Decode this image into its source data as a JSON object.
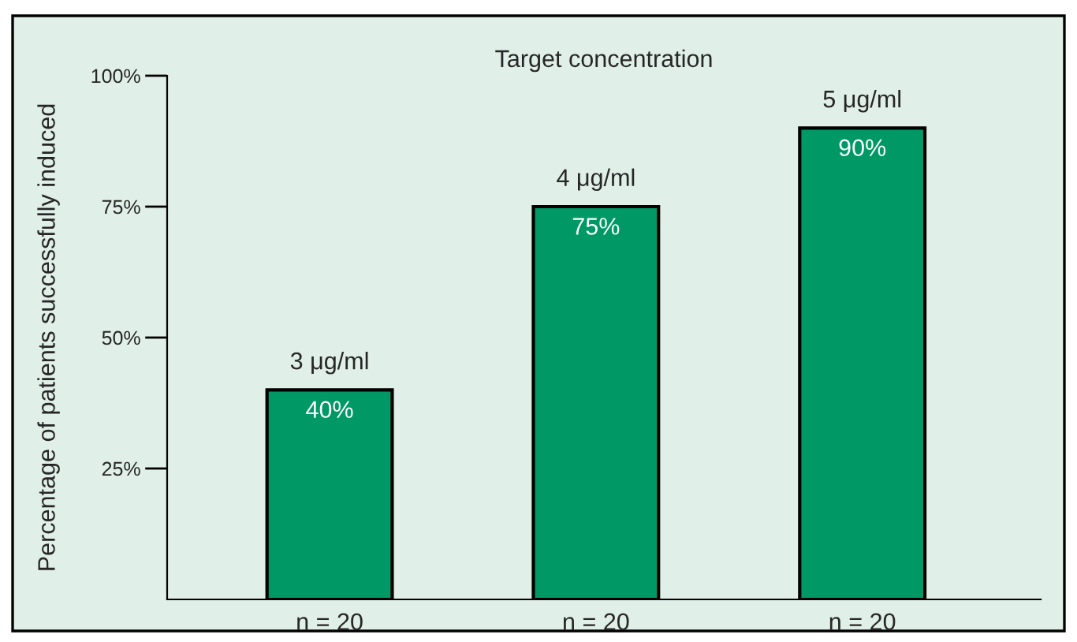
{
  "chart_data": {
    "type": "bar",
    "title": "Target concentration",
    "ylabel": "Percentage of patients successfully induced",
    "categories": [
      "n = 20",
      "n = 20",
      "n = 20"
    ],
    "values": [
      40,
      75,
      90
    ],
    "color": "#009966",
    "value_labels": [
      "40%",
      "75%",
      "90%"
    ],
    "annotations": [
      {
        "text": "3 μg/ml",
        "y": 40
      },
      {
        "text": "4 μg/ml",
        "y": 75
      },
      {
        "text": "5 μg/ml",
        "y": 90
      }
    ],
    "ylim": [
      0,
      100
    ],
    "yticks": [
      {
        "value": 25,
        "label": "25%"
      },
      {
        "value": 50,
        "label": "50%"
      },
      {
        "value": 75,
        "label": "75%"
      },
      {
        "value": 100,
        "label": "100%"
      }
    ],
    "grid": false,
    "legend": false
  }
}
